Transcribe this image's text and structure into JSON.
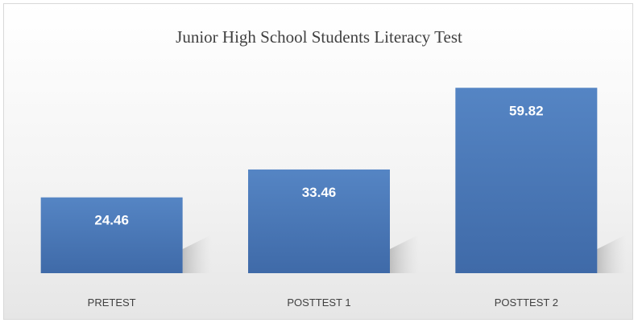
{
  "chart_data": {
    "type": "bar",
    "title": "Junior High School Students Literacy Test",
    "categories": [
      "PRETEST",
      "POSTTEST 1",
      "POSTTEST 2"
    ],
    "values": [
      24.46,
      33.46,
      59.82
    ],
    "data_labels": [
      "24.46",
      "33.46",
      "59.82"
    ],
    "xlabel": "",
    "ylabel": "",
    "ylim": [
      0,
      70
    ],
    "grid": false,
    "legend": "none",
    "colors": {
      "bar_top": "#5585c4",
      "bar_bottom": "#3f6aa8",
      "label": "#ffffff",
      "category_text": "#404040",
      "background": "#f2f2f2"
    }
  }
}
